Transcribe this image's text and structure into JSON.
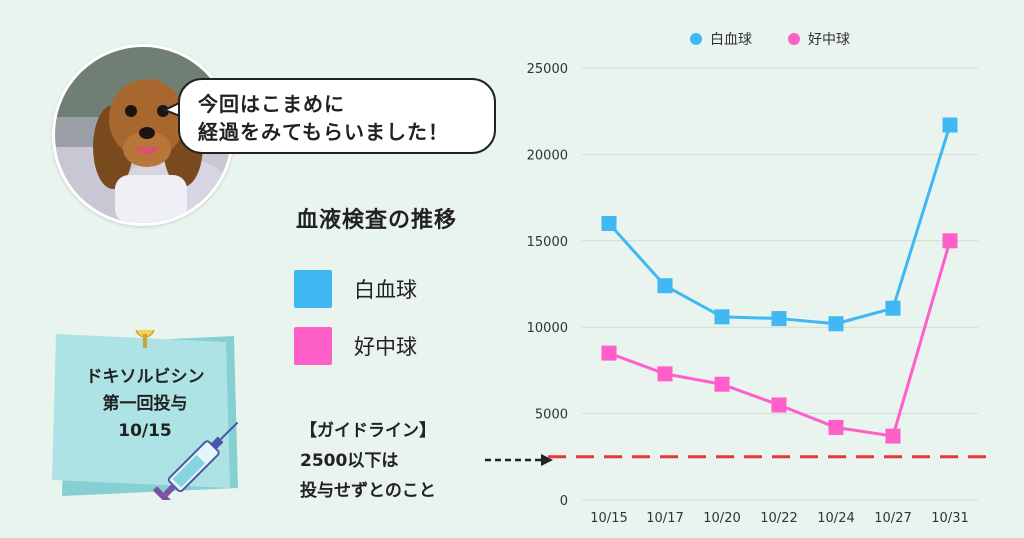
{
  "bubble": {
    "line1": "今回はこまめに",
    "line2": "経過をみてもらいました！"
  },
  "note": {
    "line1": "ドキソルビシン",
    "line2": "第一回投与",
    "line3": "10/15"
  },
  "guideline": {
    "line1": "【ガイドライン】",
    "line2": "2500以下は",
    "line3": "投与せずとのこと"
  },
  "colors": {
    "wbc": "#3fb8f3",
    "neut": "#ff5fc8",
    "threshold": "#e8363b",
    "grid": "#d3dad6"
  },
  "chart_data": {
    "type": "line",
    "title": "血液検査の推移",
    "categories": [
      "10/15",
      "10/17",
      "10/20",
      "10/22",
      "10/24",
      "10/27",
      "10/31"
    ],
    "series": [
      {
        "name": "白血球",
        "values": [
          16000,
          12400,
          10600,
          10500,
          10200,
          11100,
          21700
        ]
      },
      {
        "name": "好中球",
        "values": [
          8500,
          7300,
          6700,
          5500,
          4200,
          3700,
          15000
        ]
      }
    ],
    "yticks": [
      0,
      5000,
      10000,
      15000,
      20000,
      25000
    ],
    "ylim": [
      0,
      25000
    ],
    "threshold": 2500,
    "legend_top": [
      "白血球",
      "好中球"
    ],
    "legend_side": [
      "白血球",
      "好中球"
    ],
    "grid": true
  }
}
